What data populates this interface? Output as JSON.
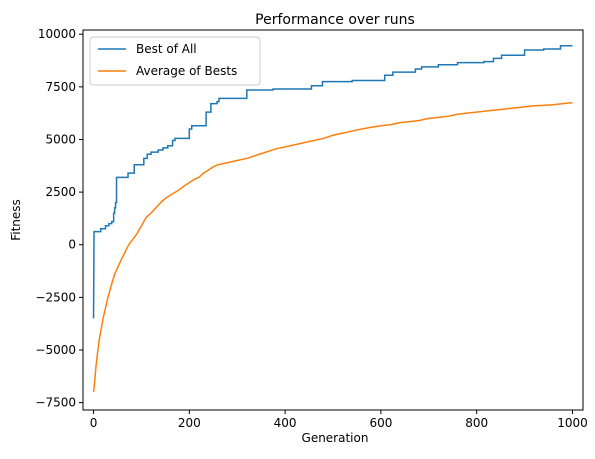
{
  "chart_data": {
    "type": "line",
    "title": "Performance over runs",
    "xlabel": "Generation",
    "ylabel": "Fitness",
    "xlim": [
      -22,
      1022
    ],
    "ylim": [
      -7850,
      10200
    ],
    "xticks": [
      0,
      200,
      400,
      600,
      800,
      1000
    ],
    "yticks": [
      -7500,
      -5000,
      -2500,
      0,
      2500,
      5000,
      7500,
      10000
    ],
    "xtick_labels": [
      "0",
      "200",
      "400",
      "600",
      "800",
      "1000"
    ],
    "ytick_labels": [
      "−7500",
      "−5000",
      "−2500",
      "0",
      "2500",
      "5000",
      "7500",
      "10000"
    ],
    "legend_position": "top-left",
    "grid": false,
    "series": [
      {
        "name": "Best of All",
        "color": "#1f77b4",
        "step": true,
        "points": [
          [
            0,
            -3500
          ],
          [
            1,
            620
          ],
          [
            15,
            620
          ],
          [
            15,
            760
          ],
          [
            25,
            760
          ],
          [
            25,
            900
          ],
          [
            32,
            900
          ],
          [
            32,
            1000
          ],
          [
            38,
            1000
          ],
          [
            38,
            1100
          ],
          [
            42,
            1100
          ],
          [
            42,
            1500
          ],
          [
            44,
            1500
          ],
          [
            44,
            1750
          ],
          [
            46,
            1750
          ],
          [
            46,
            2000
          ],
          [
            48,
            2000
          ],
          [
            48,
            3200
          ],
          [
            72,
            3200
          ],
          [
            72,
            3400
          ],
          [
            85,
            3400
          ],
          [
            85,
            3800
          ],
          [
            105,
            3800
          ],
          [
            105,
            4100
          ],
          [
            112,
            4100
          ],
          [
            112,
            4300
          ],
          [
            120,
            4300
          ],
          [
            120,
            4400
          ],
          [
            135,
            4400
          ],
          [
            135,
            4500
          ],
          [
            145,
            4500
          ],
          [
            145,
            4600
          ],
          [
            155,
            4600
          ],
          [
            155,
            4700
          ],
          [
            165,
            4700
          ],
          [
            165,
            4950
          ],
          [
            170,
            4950
          ],
          [
            170,
            5050
          ],
          [
            200,
            5050
          ],
          [
            200,
            5500
          ],
          [
            205,
            5500
          ],
          [
            205,
            5650
          ],
          [
            235,
            5650
          ],
          [
            235,
            6300
          ],
          [
            245,
            6300
          ],
          [
            245,
            6700
          ],
          [
            258,
            6700
          ],
          [
            258,
            6800
          ],
          [
            262,
            6800
          ],
          [
            262,
            6950
          ],
          [
            320,
            6950
          ],
          [
            320,
            7350
          ],
          [
            375,
            7350
          ],
          [
            375,
            7400
          ],
          [
            455,
            7400
          ],
          [
            455,
            7550
          ],
          [
            478,
            7550
          ],
          [
            478,
            7750
          ],
          [
            540,
            7750
          ],
          [
            540,
            7800
          ],
          [
            608,
            7800
          ],
          [
            608,
            8050
          ],
          [
            625,
            8050
          ],
          [
            625,
            8200
          ],
          [
            672,
            8200
          ],
          [
            672,
            8350
          ],
          [
            685,
            8350
          ],
          [
            685,
            8450
          ],
          [
            720,
            8450
          ],
          [
            720,
            8550
          ],
          [
            760,
            8550
          ],
          [
            760,
            8650
          ],
          [
            815,
            8650
          ],
          [
            815,
            8700
          ],
          [
            835,
            8700
          ],
          [
            835,
            8850
          ],
          [
            852,
            8850
          ],
          [
            852,
            9000
          ],
          [
            900,
            9000
          ],
          [
            900,
            9250
          ],
          [
            940,
            9250
          ],
          [
            940,
            9300
          ],
          [
            975,
            9300
          ],
          [
            975,
            9450
          ],
          [
            1000,
            9450
          ]
        ]
      },
      {
        "name": "Average of Bests",
        "color": "#ff7f0e",
        "step": false,
        "points": [
          [
            0,
            -7000
          ],
          [
            2,
            -6600
          ],
          [
            5,
            -5800
          ],
          [
            8,
            -5200
          ],
          [
            12,
            -4500
          ],
          [
            16,
            -4000
          ],
          [
            20,
            -3500
          ],
          [
            25,
            -3000
          ],
          [
            30,
            -2500
          ],
          [
            35,
            -2100
          ],
          [
            40,
            -1700
          ],
          [
            45,
            -1350
          ],
          [
            50,
            -1100
          ],
          [
            55,
            -850
          ],
          [
            60,
            -600
          ],
          [
            65,
            -400
          ],
          [
            70,
            -150
          ],
          [
            75,
            50
          ],
          [
            80,
            200
          ],
          [
            90,
            500
          ],
          [
            100,
            900
          ],
          [
            110,
            1300
          ],
          [
            120,
            1500
          ],
          [
            130,
            1750
          ],
          [
            140,
            2000
          ],
          [
            150,
            2200
          ],
          [
            160,
            2350
          ],
          [
            175,
            2550
          ],
          [
            190,
            2800
          ],
          [
            200,
            2950
          ],
          [
            210,
            3100
          ],
          [
            220,
            3200
          ],
          [
            230,
            3400
          ],
          [
            240,
            3550
          ],
          [
            250,
            3700
          ],
          [
            260,
            3800
          ],
          [
            280,
            3900
          ],
          [
            300,
            4000
          ],
          [
            320,
            4100
          ],
          [
            340,
            4250
          ],
          [
            360,
            4400
          ],
          [
            380,
            4550
          ],
          [
            400,
            4650
          ],
          [
            420,
            4750
          ],
          [
            440,
            4850
          ],
          [
            460,
            4950
          ],
          [
            480,
            5050
          ],
          [
            500,
            5200
          ],
          [
            520,
            5300
          ],
          [
            540,
            5400
          ],
          [
            560,
            5500
          ],
          [
            580,
            5580
          ],
          [
            600,
            5650
          ],
          [
            620,
            5700
          ],
          [
            640,
            5800
          ],
          [
            660,
            5850
          ],
          [
            680,
            5900
          ],
          [
            700,
            6000
          ],
          [
            720,
            6050
          ],
          [
            740,
            6100
          ],
          [
            760,
            6200
          ],
          [
            780,
            6250
          ],
          [
            800,
            6300
          ],
          [
            820,
            6350
          ],
          [
            840,
            6400
          ],
          [
            860,
            6450
          ],
          [
            880,
            6500
          ],
          [
            900,
            6550
          ],
          [
            920,
            6600
          ],
          [
            940,
            6620
          ],
          [
            960,
            6650
          ],
          [
            980,
            6700
          ],
          [
            1000,
            6750
          ]
        ]
      }
    ]
  }
}
